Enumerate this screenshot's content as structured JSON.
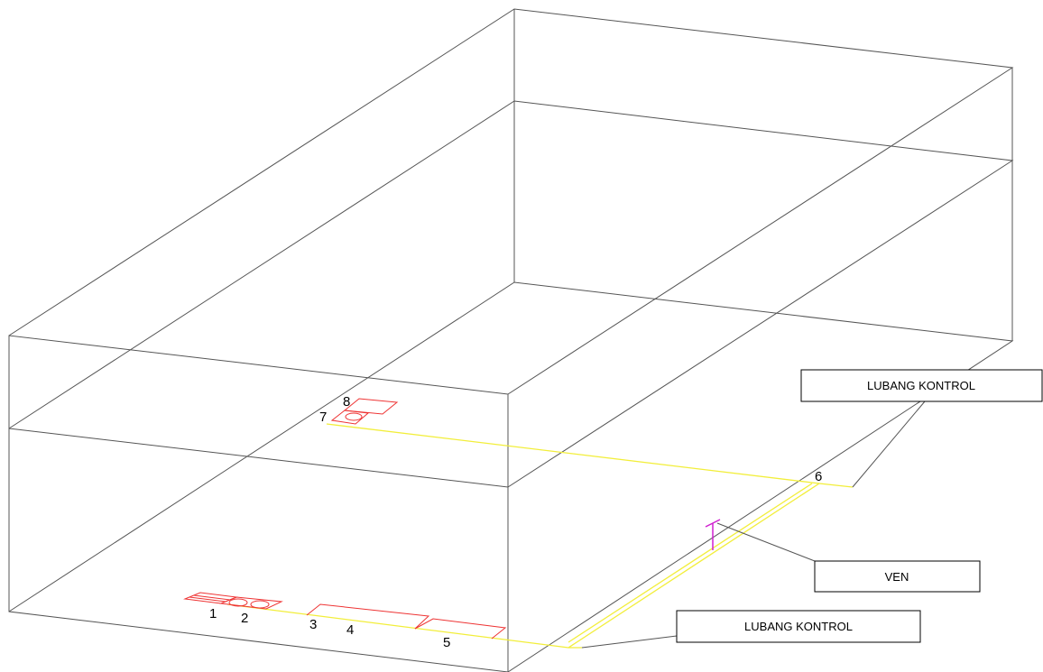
{
  "labels": [
    "1",
    "2",
    "3",
    "4",
    "5",
    "6",
    "7",
    "8"
  ],
  "callouts": [
    "LUBANG KONTROL",
    "VEN",
    "LUBANG KONTROL"
  ]
}
